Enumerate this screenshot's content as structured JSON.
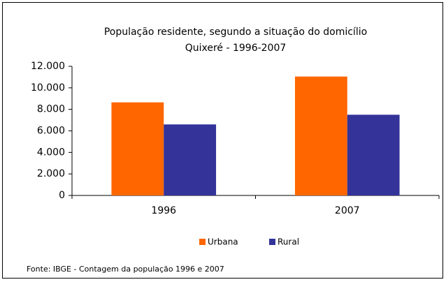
{
  "chart_data": {
    "type": "bar",
    "title": "População residente, segundo a situação do domicílio",
    "subtitle": "Quixeré - 1996-2007",
    "categories": [
      "1996",
      "2007"
    ],
    "series": [
      {
        "name": "Urbana",
        "color": "#ff6600",
        "values": [
          8650,
          11050
        ]
      },
      {
        "name": "Rural",
        "color": "#333399",
        "values": [
          6600,
          7500
        ]
      }
    ],
    "ylim": [
      0,
      12000
    ],
    "yticks": [
      {
        "value": 0,
        "label": "0"
      },
      {
        "value": 2000,
        "label": "2.000"
      },
      {
        "value": 4000,
        "label": "4.000"
      },
      {
        "value": 6000,
        "label": "6.000"
      },
      {
        "value": 8000,
        "label": "8.000"
      },
      {
        "value": 10000,
        "label": "10.000"
      },
      {
        "value": 12000,
        "label": "12.000"
      }
    ],
    "legend": "bottom",
    "note": "Fonte: IBGE - Contagem da população 1996 e 2007"
  }
}
